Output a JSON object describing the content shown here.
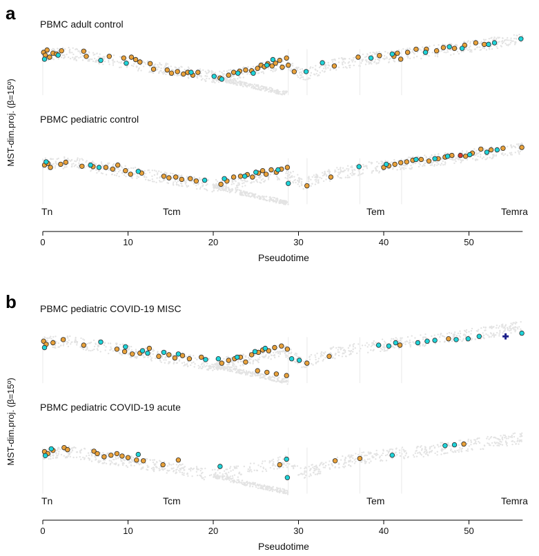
{
  "panels": [
    {
      "letter": "a",
      "ylabel": "MST-dim.proj. (β=15º)",
      "xlabel": "Pseudotime"
    },
    {
      "letter": "b",
      "ylabel": "MST-dim.proj. (β=15º)",
      "xlabel": "Pseudotime"
    }
  ],
  "stages": [
    "Tn",
    "Tcm",
    "Tem",
    "Temra"
  ],
  "x_ticks": [
    0,
    10,
    20,
    30,
    40,
    50
  ],
  "colors": {
    "background_cells": "#e3e3e3",
    "orange": "#e8a13a",
    "cyan": "#1fd3d8",
    "red": "#d93a2b",
    "navy": "#1b1f8a",
    "outline": "#2a2a2a"
  },
  "chart_data": {
    "type": "scatter",
    "xlabel": "Pseudotime",
    "ylabel": "MST-dim.proj. (β=15º)",
    "xlim": [
      0,
      56.5
    ],
    "ylim": [
      -1,
      1
    ],
    "x_ticks": [
      0,
      10,
      20,
      30,
      40,
      50
    ],
    "stage_labels": [
      "Tn",
      "Tcm",
      "Tem",
      "Temra"
    ],
    "subplots": [
      {
        "panel": "a",
        "title": "PBMC adult control",
        "orange": [
          [
            0.1,
            0.62
          ],
          [
            0.3,
            0.55
          ],
          [
            0.5,
            0.68
          ],
          [
            0.8,
            0.5
          ],
          [
            1.2,
            0.6
          ],
          [
            1.6,
            0.58
          ],
          [
            2.2,
            0.66
          ],
          [
            4.8,
            0.65
          ],
          [
            5.1,
            0.52
          ],
          [
            7.8,
            0.52
          ],
          [
            9.5,
            0.48
          ],
          [
            10.4,
            0.5
          ],
          [
            10.9,
            0.44
          ],
          [
            11.4,
            0.38
          ],
          [
            12.6,
            0.34
          ],
          [
            13.0,
            0.2
          ],
          [
            14.6,
            0.18
          ],
          [
            15.1,
            0.1
          ],
          [
            15.8,
            0.14
          ],
          [
            16.5,
            0.08
          ],
          [
            17.0,
            0.12
          ],
          [
            17.6,
            0.05
          ],
          [
            18.2,
            0.12
          ],
          [
            20.8,
            -0.02
          ],
          [
            21.8,
            0.05
          ],
          [
            22.4,
            0.12
          ],
          [
            23.1,
            0.15
          ],
          [
            23.8,
            0.18
          ],
          [
            24.5,
            0.16
          ],
          [
            25.2,
            0.22
          ],
          [
            25.6,
            0.3
          ],
          [
            26.0,
            0.26
          ],
          [
            26.4,
            0.34
          ],
          [
            26.9,
            0.28
          ],
          [
            27.3,
            0.35
          ],
          [
            27.8,
            0.42
          ],
          [
            28.1,
            0.25
          ],
          [
            28.6,
            0.48
          ],
          [
            28.8,
            0.3
          ],
          [
            29.5,
            0.14
          ],
          [
            34.2,
            0.28
          ],
          [
            37.0,
            0.5
          ],
          [
            39.5,
            0.54
          ],
          [
            41.2,
            0.52
          ],
          [
            41.6,
            0.6
          ],
          [
            42.0,
            0.45
          ],
          [
            42.8,
            0.62
          ],
          [
            43.8,
            0.7
          ],
          [
            45.0,
            0.7
          ],
          [
            46.2,
            0.66
          ],
          [
            47.0,
            0.74
          ],
          [
            48.3,
            0.72
          ],
          [
            49.5,
            0.8
          ],
          [
            50.8,
            0.86
          ],
          [
            51.8,
            0.82
          ]
        ],
        "cyan": [
          [
            0.2,
            0.45
          ],
          [
            1.8,
            0.55
          ],
          [
            6.8,
            0.42
          ],
          [
            9.8,
            0.35
          ],
          [
            17.4,
            0.12
          ],
          [
            20.1,
            0.02
          ],
          [
            21.0,
            -0.05
          ],
          [
            22.9,
            0.1
          ],
          [
            24.7,
            0.1
          ],
          [
            26.3,
            0.3
          ],
          [
            27.0,
            0.44
          ],
          [
            30.9,
            0.14
          ],
          [
            32.8,
            0.36
          ],
          [
            38.5,
            0.48
          ],
          [
            41.0,
            0.58
          ],
          [
            44.9,
            0.62
          ],
          [
            47.7,
            0.76
          ],
          [
            49.2,
            0.72
          ],
          [
            52.3,
            0.82
          ],
          [
            53.0,
            0.86
          ],
          [
            56.1,
            0.96
          ]
        ],
        "red": [],
        "navy": []
      },
      {
        "panel": "a",
        "title": "PBMC pediatric control",
        "orange": [
          [
            0.2,
            0.18
          ],
          [
            0.6,
            0.22
          ],
          [
            0.9,
            0.12
          ],
          [
            2.1,
            0.2
          ],
          [
            2.7,
            0.25
          ],
          [
            4.6,
            0.15
          ],
          [
            5.9,
            0.14
          ],
          [
            7.4,
            0.12
          ],
          [
            8.2,
            0.08
          ],
          [
            8.8,
            0.18
          ],
          [
            9.7,
            0.04
          ],
          [
            10.3,
            -0.05
          ],
          [
            11.6,
            -0.02
          ],
          [
            14.2,
            -0.1
          ],
          [
            14.8,
            -0.14
          ],
          [
            15.6,
            -0.12
          ],
          [
            16.3,
            -0.18
          ],
          [
            17.3,
            -0.16
          ],
          [
            18.0,
            -0.22
          ],
          [
            20.9,
            -0.3
          ],
          [
            21.6,
            -0.22
          ],
          [
            22.4,
            -0.12
          ],
          [
            23.2,
            -0.1
          ],
          [
            24.0,
            -0.06
          ],
          [
            24.6,
            -0.12
          ],
          [
            25.3,
            -0.02
          ],
          [
            25.8,
            0.04
          ],
          [
            26.2,
            -0.05
          ],
          [
            26.8,
            0.06
          ],
          [
            27.4,
            0.0
          ],
          [
            28.0,
            0.08
          ],
          [
            28.7,
            0.12
          ],
          [
            31.0,
            -0.34
          ],
          [
            33.8,
            -0.12
          ],
          [
            40.0,
            0.12
          ],
          [
            40.6,
            0.16
          ],
          [
            41.3,
            0.2
          ],
          [
            42.0,
            0.24
          ],
          [
            42.7,
            0.26
          ],
          [
            43.4,
            0.3
          ],
          [
            44.4,
            0.32
          ],
          [
            45.3,
            0.28
          ],
          [
            46.4,
            0.34
          ],
          [
            47.2,
            0.38
          ],
          [
            48.0,
            0.42
          ],
          [
            49.6,
            0.4
          ],
          [
            50.4,
            0.48
          ],
          [
            51.4,
            0.58
          ],
          [
            52.6,
            0.56
          ],
          [
            54.0,
            0.6
          ],
          [
            56.2,
            0.62
          ]
        ],
        "cyan": [
          [
            0.4,
            0.26
          ],
          [
            5.6,
            0.18
          ],
          [
            6.6,
            0.12
          ],
          [
            11.2,
            0.02
          ],
          [
            19.0,
            -0.2
          ],
          [
            21.3,
            -0.16
          ],
          [
            23.7,
            -0.1
          ],
          [
            25.0,
            0.0
          ],
          [
            27.6,
            0.06
          ],
          [
            28.8,
            -0.28
          ],
          [
            37.1,
            0.14
          ],
          [
            40.3,
            0.2
          ],
          [
            43.8,
            0.32
          ],
          [
            46.0,
            0.34
          ],
          [
            47.5,
            0.4
          ],
          [
            50.1,
            0.44
          ],
          [
            52.1,
            0.5
          ],
          [
            53.3,
            0.56
          ]
        ],
        "red": [
          [
            49.0,
            0.42
          ]
        ],
        "navy": []
      },
      {
        "panel": "b",
        "title": "PBMC pediatric COVID-19 MISC",
        "orange": [
          [
            0.1,
            0.6
          ],
          [
            0.4,
            0.52
          ],
          [
            1.2,
            0.56
          ],
          [
            2.4,
            0.64
          ],
          [
            4.8,
            0.5
          ],
          [
            8.7,
            0.4
          ],
          [
            9.6,
            0.34
          ],
          [
            10.5,
            0.28
          ],
          [
            11.4,
            0.3
          ],
          [
            12.5,
            0.42
          ],
          [
            13.6,
            0.22
          ],
          [
            14.8,
            0.26
          ],
          [
            15.5,
            0.18
          ],
          [
            16.4,
            0.24
          ],
          [
            17.2,
            0.16
          ],
          [
            18.6,
            0.2
          ],
          [
            21.0,
            0.05
          ],
          [
            21.8,
            0.12
          ],
          [
            22.5,
            0.16
          ],
          [
            23.2,
            0.2
          ],
          [
            23.8,
            0.08
          ],
          [
            24.5,
            0.26
          ],
          [
            25.3,
            0.32
          ],
          [
            25.8,
            0.38
          ],
          [
            26.5,
            0.36
          ],
          [
            27.2,
            0.44
          ],
          [
            28.0,
            0.48
          ],
          [
            28.7,
            0.4
          ],
          [
            25.2,
            -0.14
          ],
          [
            26.3,
            -0.18
          ],
          [
            27.4,
            -0.22
          ],
          [
            28.6,
            -0.26
          ],
          [
            31.0,
            0.05
          ],
          [
            33.6,
            0.22
          ],
          [
            41.9,
            0.5
          ],
          [
            47.6,
            0.66
          ]
        ],
        "cyan": [
          [
            0.2,
            0.44
          ],
          [
            6.8,
            0.58
          ],
          [
            9.7,
            0.46
          ],
          [
            11.7,
            0.36
          ],
          [
            12.3,
            0.3
          ],
          [
            14.2,
            0.32
          ],
          [
            15.9,
            0.28
          ],
          [
            19.1,
            0.14
          ],
          [
            20.6,
            0.16
          ],
          [
            22.8,
            0.2
          ],
          [
            24.9,
            0.34
          ],
          [
            26.1,
            0.42
          ],
          [
            29.2,
            0.16
          ],
          [
            30.1,
            0.12
          ],
          [
            39.4,
            0.5
          ],
          [
            40.6,
            0.48
          ],
          [
            41.4,
            0.56
          ],
          [
            44.0,
            0.56
          ],
          [
            45.1,
            0.6
          ],
          [
            46.0,
            0.62
          ],
          [
            48.5,
            0.64
          ],
          [
            49.9,
            0.66
          ],
          [
            51.2,
            0.72
          ],
          [
            56.2,
            0.8
          ]
        ],
        "red": [],
        "navy": [
          [
            54.3,
            0.72
          ]
        ]
      },
      {
        "panel": "b",
        "title": "PBMC pediatric COVID-19 acute",
        "orange": [
          [
            0.2,
            0.25
          ],
          [
            0.6,
            0.2
          ],
          [
            1.2,
            0.28
          ],
          [
            2.5,
            0.35
          ],
          [
            2.9,
            0.3
          ],
          [
            6.0,
            0.26
          ],
          [
            6.4,
            0.2
          ],
          [
            7.2,
            0.12
          ],
          [
            8.0,
            0.16
          ],
          [
            8.7,
            0.2
          ],
          [
            9.3,
            0.14
          ],
          [
            10.0,
            0.1
          ],
          [
            11.0,
            0.04
          ],
          [
            11.8,
            0.02
          ],
          [
            14.1,
            -0.08
          ],
          [
            15.9,
            0.04
          ],
          [
            27.8,
            -0.08
          ],
          [
            34.3,
            0.02
          ],
          [
            37.2,
            0.08
          ],
          [
            49.4,
            0.44
          ]
        ],
        "cyan": [
          [
            0.3,
            0.15
          ],
          [
            1.0,
            0.32
          ],
          [
            11.2,
            0.18
          ],
          [
            20.8,
            -0.12
          ],
          [
            28.6,
            0.06
          ],
          [
            28.7,
            -0.4
          ],
          [
            41.0,
            0.16
          ],
          [
            47.2,
            0.4
          ],
          [
            48.3,
            0.42
          ]
        ],
        "red": [],
        "navy": []
      }
    ]
  }
}
